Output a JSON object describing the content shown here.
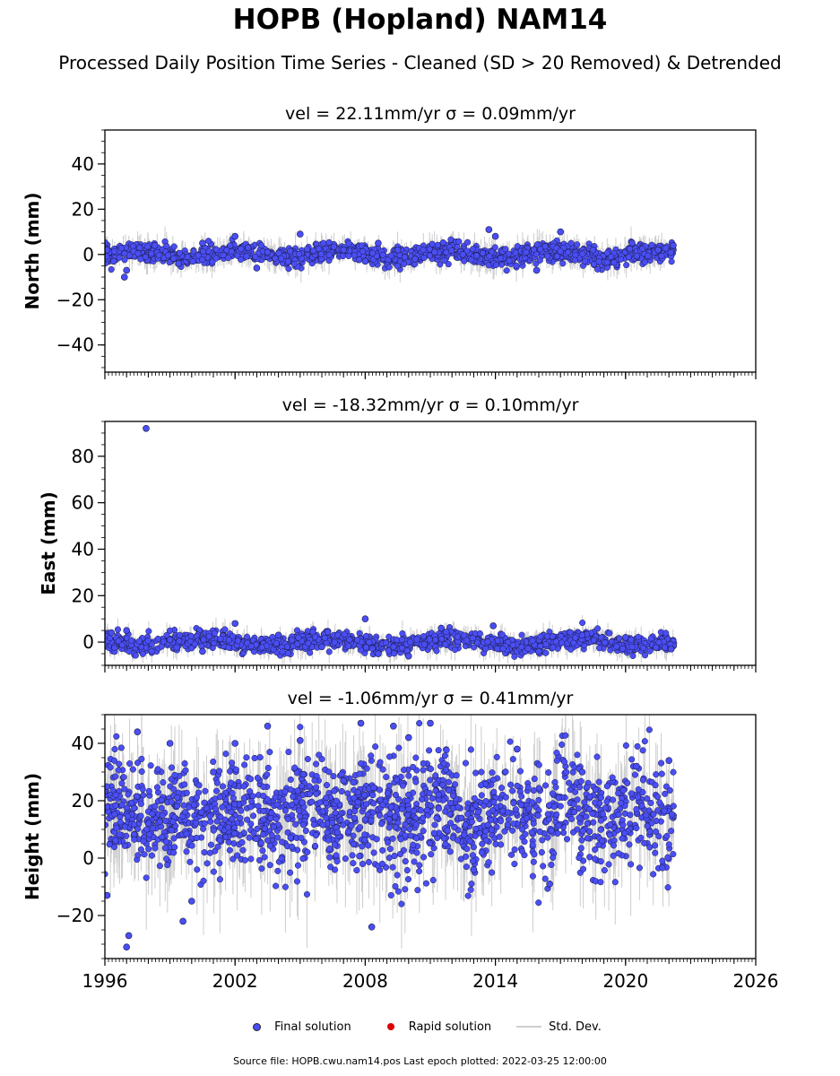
{
  "page": {
    "title": "HOPB (Hopland) NAM14",
    "subtitle": "Processed Daily Position Time Series - Cleaned (SD > 20 Removed) & Detrended",
    "footer": "Source file: HOPB.cwu.nam14.pos  Last epoch plotted: 2022-03-25 12:00:00"
  },
  "legend": [
    {
      "label": "Final solution",
      "color": "#4a4ef5"
    },
    {
      "label": "Rapid solution",
      "color": "#dd0000"
    },
    {
      "label": "Std. Dev.",
      "color": "#cfcfcf"
    }
  ],
  "chart_data": [
    {
      "type": "scatter",
      "title": "vel = 22.11mm/yr   σ = 0.09mm/yr",
      "ylabel": "North (mm)",
      "xlim": [
        1996,
        2026
      ],
      "ylim": [
        -52,
        55
      ],
      "yticks": [
        -40,
        -20,
        0,
        20,
        40
      ],
      "xticks": [
        "1996",
        "2002",
        "2008",
        "2014",
        "2020",
        "2026"
      ],
      "x_range_data": [
        1996.0,
        2022.23
      ],
      "series": [
        {
          "x": [
            1996.1,
            1996.4,
            1996.9,
            1997.0,
            1997.6,
            1998.3,
            1999.4,
            2000.5,
            2002.0,
            2002.6,
            2003.0,
            2003.5,
            2005.0,
            2007.0,
            2008.0,
            2008.6,
            2009.5,
            2010.3,
            2011.2,
            2012.5,
            2013.7,
            2014.0,
            2015.9,
            2017.0,
            2018.5,
            2020.3,
            2021.5,
            2022.2
          ],
          "y": [
            2,
            -3,
            -10,
            -7,
            3,
            4,
            -4,
            5,
            8,
            3,
            -6,
            1,
            9,
            2,
            -3,
            5,
            2,
            -2,
            1,
            0,
            11,
            8,
            -7,
            10,
            2,
            5,
            2,
            4
          ]
        }
      ]
    },
    {
      "type": "scatter",
      "title": "vel = -18.32mm/yr   σ = 0.10mm/yr",
      "ylabel": "East (mm)",
      "xlim": [
        1996,
        2026
      ],
      "ylim": [
        -10,
        95
      ],
      "yticks": [
        0,
        20,
        40,
        60,
        80
      ],
      "xticks": [
        "1996",
        "2002",
        "2008",
        "2014",
        "2020",
        "2026"
      ],
      "x_range_data": [
        1996.0,
        2022.23
      ],
      "series": [
        {
          "x": [
            1996.3,
            1997.0,
            1997.9,
            1999.0,
            2000.5,
            2002.0,
            2004.0,
            2006.0,
            2008.0,
            2008.6,
            2010.0,
            2011.5,
            2013.9,
            2016.0,
            2018.0,
            2020.0,
            2022.1
          ],
          "y": [
            4,
            5,
            92,
            1,
            -4,
            8,
            3,
            -2,
            10,
            -5,
            -6,
            6,
            7,
            -4,
            3,
            2,
            -3
          ]
        }
      ]
    },
    {
      "type": "scatter",
      "title": "vel = -1.06mm/yr   σ = 0.41mm/yr",
      "ylabel": "Height (mm)",
      "xlim": [
        1996,
        2026
      ],
      "ylim": [
        -35,
        50
      ],
      "yticks": [
        -20,
        0,
        20,
        40
      ],
      "xticks": [
        "1996",
        "2002",
        "2008",
        "2014",
        "2020",
        "2026"
      ],
      "x_range_data": [
        1996.0,
        2022.23
      ],
      "series": [
        {
          "x": [
            1996.1,
            1997.0,
            1997.1,
            1997.5,
            1999.0,
            1999.6,
            2000.0,
            2001.0,
            2002.0,
            2003.5,
            2005.0,
            2007.0,
            2007.8,
            2008.3,
            2009.3,
            2010.0,
            2011.0,
            2013.0,
            2015.0,
            2016.5,
            2018.0,
            2020.5,
            2022.0
          ],
          "y": [
            -13,
            -31,
            -27,
            44,
            40,
            -22,
            -15,
            30,
            40,
            46,
            41,
            27,
            47,
            -24,
            46,
            42,
            47,
            -4,
            38,
            -9,
            30,
            32,
            34
          ]
        }
      ]
    }
  ]
}
